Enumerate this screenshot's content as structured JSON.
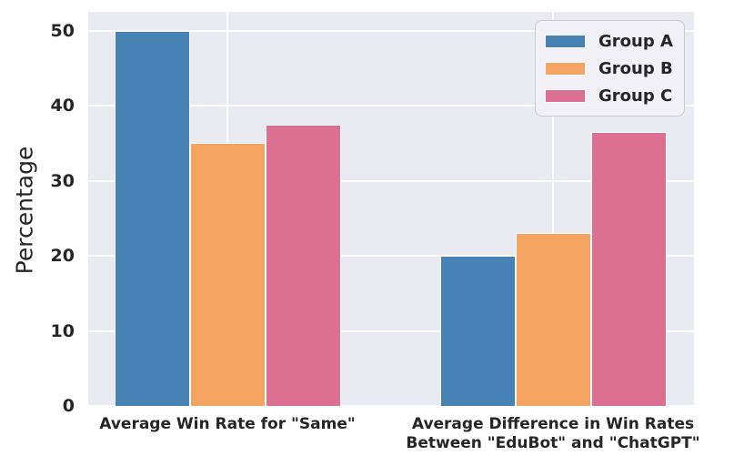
{
  "chart": {
    "background_color": "#ffffff",
    "plot_background_color": "#eaeaf2",
    "grid_color": "#ffffff",
    "text_color": "#262626"
  },
  "chart_data": {
    "type": "bar",
    "title": "",
    "xlabel": "",
    "ylabel": "Percentage",
    "categories": [
      "Average Win Rate for \"Same\"",
      "Average Difference in Win Rates\nBetween \"EduBot\" and \"ChatGPT\""
    ],
    "series": [
      {
        "name": "Group A",
        "color": "#4682b4",
        "values": [
          50,
          20
        ]
      },
      {
        "name": "Group B",
        "color": "#f4a460",
        "values": [
          35,
          23
        ]
      },
      {
        "name": "Group C",
        "color": "#db7093",
        "values": [
          37.5,
          36.5
        ]
      }
    ],
    "yticks": [
      0,
      10,
      20,
      30,
      40,
      50
    ],
    "ylim": [
      0,
      52.5
    ],
    "grid": true,
    "legend_position": "upper right"
  }
}
